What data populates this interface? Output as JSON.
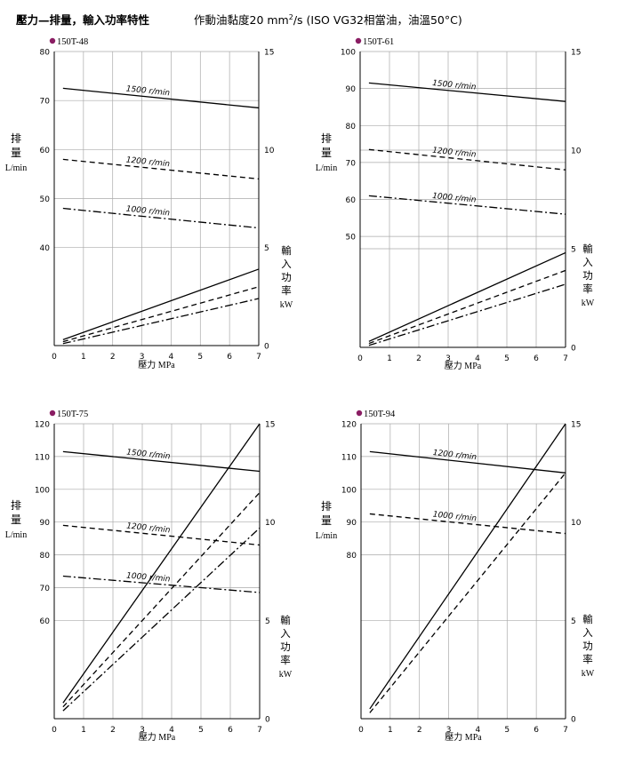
{
  "header": {
    "title": "壓力—排量，輸入功率特性",
    "viscosity_prefix": "作動油黏度20 mm",
    "viscosity_sup": "2",
    "viscosity_suffix": "/s  (ISO VG32相當油，油溫50°C)"
  },
  "colors": {
    "marker": "#8a1d63",
    "grid": "#aaaaaa",
    "line": "#000000"
  },
  "chart_data": [
    {
      "type": "line",
      "title": "150T-48",
      "xlabel": "壓力 MPa",
      "ylabel_left": [
        "排",
        "量",
        "L/min"
      ],
      "ylabel_right": [
        "輸",
        "入",
        "功",
        "率",
        "kW"
      ],
      "x_ticks": [
        0,
        1,
        2,
        3,
        4,
        5,
        6,
        7
      ],
      "xlim": [
        0,
        7
      ],
      "flow_ylim": [
        20,
        80
      ],
      "flow_ticks": [
        40,
        50,
        60,
        70,
        80
      ],
      "power_ylim": [
        0,
        15
      ],
      "power_ticks": [
        0,
        5,
        10,
        15
      ],
      "grid": true,
      "flow_series": [
        {
          "name": "1500 r/min",
          "style": "solid",
          "x": [
            0.3,
            7
          ],
          "y": [
            72.5,
            68.5
          ]
        },
        {
          "name": "1200 r/min",
          "style": "dashed",
          "x": [
            0.3,
            7
          ],
          "y": [
            58,
            54
          ]
        },
        {
          "name": "1000 r/min",
          "style": "dashdot",
          "x": [
            0.3,
            7
          ],
          "y": [
            48,
            44
          ]
        }
      ],
      "power_series": [
        {
          "style": "solid",
          "x": [
            0.3,
            7
          ],
          "y": [
            0.3,
            3.9
          ]
        },
        {
          "style": "dashed",
          "x": [
            0.3,
            7
          ],
          "y": [
            0.2,
            3.0
          ]
        },
        {
          "style": "dashdot",
          "x": [
            0.3,
            7
          ],
          "y": [
            0.1,
            2.4
          ]
        }
      ]
    },
    {
      "type": "line",
      "title": "150T-61",
      "xlabel": "壓力 MPa",
      "ylabel_left": [
        "排",
        "量",
        "L/min"
      ],
      "ylabel_right": [
        "輸",
        "入",
        "功",
        "率",
        "kW"
      ],
      "x_ticks": [
        0,
        1,
        2,
        3,
        4,
        5,
        6,
        7
      ],
      "xlim": [
        0,
        7
      ],
      "flow_ylim": [
        20,
        100
      ],
      "flow_ticks": [
        50,
        60,
        70,
        80,
        90,
        100
      ],
      "power_ylim": [
        0,
        15
      ],
      "power_ticks": [
        0,
        5,
        10,
        15
      ],
      "grid": true,
      "flow_series": [
        {
          "name": "1500 r/min",
          "style": "solid",
          "x": [
            0.3,
            7
          ],
          "y": [
            91.5,
            86.5
          ]
        },
        {
          "name": "1200 r/min",
          "style": "dashed",
          "x": [
            0.3,
            7
          ],
          "y": [
            73.5,
            68
          ]
        },
        {
          "name": "1000 r/min",
          "style": "dashdot",
          "x": [
            0.3,
            7
          ],
          "y": [
            61,
            56
          ]
        }
      ],
      "power_series": [
        {
          "style": "solid",
          "x": [
            0.3,
            7
          ],
          "y": [
            0.3,
            4.8
          ]
        },
        {
          "style": "dashed",
          "x": [
            0.3,
            7
          ],
          "y": [
            0.2,
            3.9
          ]
        },
        {
          "style": "dashdot",
          "x": [
            0.3,
            7
          ],
          "y": [
            0.1,
            3.2
          ]
        }
      ]
    },
    {
      "type": "line",
      "title": "150T-75",
      "xlabel": "壓力 MPa",
      "ylabel_left": [
        "排",
        "量",
        "L/min"
      ],
      "ylabel_right": [
        "輸",
        "入",
        "功",
        "率",
        "kW"
      ],
      "x_ticks": [
        0,
        1,
        2,
        3,
        4,
        5,
        6,
        7
      ],
      "xlim": [
        0,
        7
      ],
      "flow_ylim": [
        30,
        120
      ],
      "flow_ticks": [
        60,
        70,
        80,
        90,
        100,
        110,
        120
      ],
      "power_ylim": [
        0,
        15
      ],
      "power_ticks": [
        0,
        5,
        10,
        15
      ],
      "grid": true,
      "flow_series": [
        {
          "name": "1500 r/min",
          "style": "solid",
          "x": [
            0.3,
            7
          ],
          "y": [
            111.5,
            105.5
          ]
        },
        {
          "name": "1200 r/min",
          "style": "dashed",
          "x": [
            0.3,
            7
          ],
          "y": [
            89,
            83
          ]
        },
        {
          "name": "1000 r/min",
          "style": "dashdot",
          "x": [
            0.3,
            7
          ],
          "y": [
            73.5,
            68.5
          ]
        }
      ],
      "power_series": [
        {
          "style": "solid",
          "x": [
            0.3,
            7
          ],
          "y": [
            0.8,
            15
          ]
        },
        {
          "style": "dashed",
          "x": [
            0.3,
            7
          ],
          "y": [
            0.6,
            11.5
          ]
        },
        {
          "style": "dashdot",
          "x": [
            0.3,
            7
          ],
          "y": [
            0.4,
            9.7
          ]
        }
      ]
    },
    {
      "type": "line",
      "title": "150T-94",
      "xlabel": "壓力 MPa",
      "ylabel_left": [
        "排",
        "量",
        "L/min"
      ],
      "ylabel_right": [
        "輸",
        "入",
        "功",
        "率",
        "kW"
      ],
      "x_ticks": [
        0,
        1,
        2,
        3,
        4,
        5,
        6,
        7
      ],
      "xlim": [
        0,
        7
      ],
      "flow_ylim": [
        30,
        120
      ],
      "flow_ticks": [
        80,
        90,
        100,
        110,
        120
      ],
      "power_ylim": [
        0,
        15
      ],
      "power_ticks": [
        0,
        5,
        10,
        15
      ],
      "grid": true,
      "flow_series": [
        {
          "name": "1200 r/min",
          "style": "solid",
          "x": [
            0.3,
            7
          ],
          "y": [
            111.5,
            105
          ]
        },
        {
          "name": "1000 r/min",
          "style": "dashed",
          "x": [
            0.3,
            7
          ],
          "y": [
            92.5,
            86.5
          ]
        }
      ],
      "power_series": [
        {
          "style": "solid",
          "x": [
            0.3,
            7
          ],
          "y": [
            0.5,
            15
          ]
        },
        {
          "style": "dashed",
          "x": [
            0.3,
            7
          ],
          "y": [
            0.3,
            12.5
          ]
        }
      ]
    }
  ]
}
